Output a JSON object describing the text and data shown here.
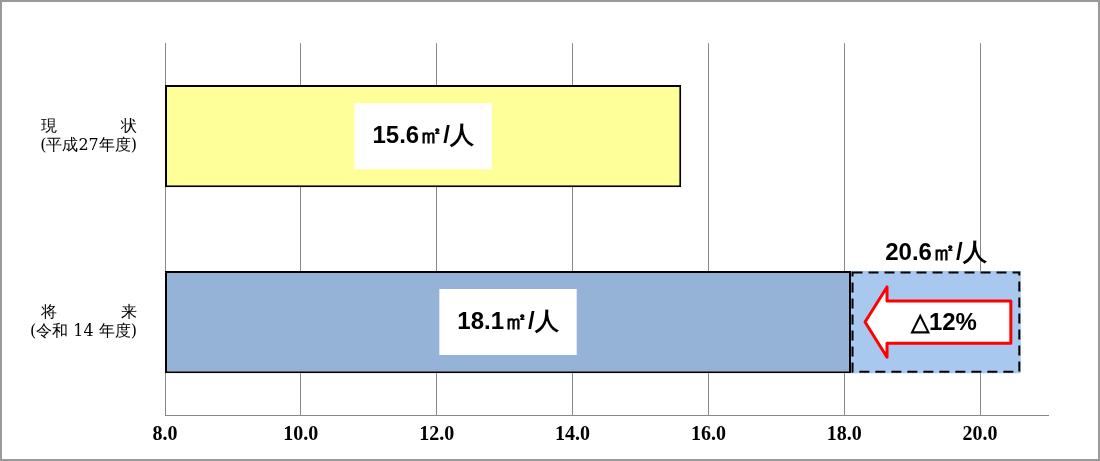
{
  "chart_data": {
    "type": "bar",
    "orientation": "horizontal",
    "categories": [
      "現　　　　状\n(平成27年度)",
      "将　　　　来\n(令和 14 年度)"
    ],
    "series": [
      {
        "colors": [
          "#ffff99",
          "#95b3d7"
        ],
        "values": [
          15.6,
          18.1
        ],
        "value_labels": [
          "15.6㎡/人",
          "18.1㎡/人"
        ]
      },
      {
        "color": "#a9c8f0",
        "base": [
          null,
          18.1
        ],
        "values": [
          null,
          2.5
        ],
        "value_labels": [
          null,
          "20.6㎡/人"
        ],
        "line_style": "dashed"
      }
    ],
    "xlim": [
      8,
      21
    ],
    "xticks": [
      {
        "value": 8,
        "label": "8.0"
      },
      {
        "value": 10,
        "label": "10.0"
      },
      {
        "value": 12,
        "label": "12.0"
      },
      {
        "value": 14,
        "label": "14.0"
      },
      {
        "value": 16,
        "label": "16.0"
      },
      {
        "value": 18,
        "label": "18.0"
      },
      {
        "value": 20,
        "label": "20.0"
      }
    ],
    "grid": "x",
    "legend": false,
    "annotations": [
      "△12%"
    ]
  }
}
